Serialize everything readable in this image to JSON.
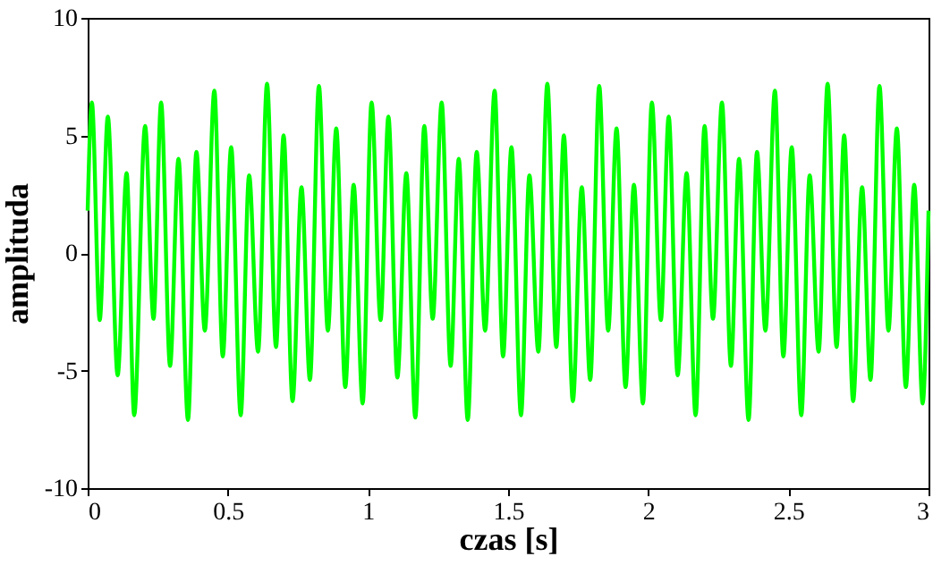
{
  "chart_data": {
    "type": "line",
    "xlabel": "czas [s]",
    "ylabel": "amplituda",
    "color": "#00ff00",
    "xlim": [
      0,
      3
    ],
    "ylim": [
      -10,
      10
    ],
    "xticks": [
      0,
      0.5,
      1,
      1.5,
      2,
      2.5,
      3
    ],
    "yticks": [
      -10,
      -5,
      0,
      5,
      10
    ],
    "grid": false,
    "x": [
      0,
      0.015,
      0.043,
      0.072,
      0.107,
      0.139,
      0.166,
      0.205,
      0.235,
      0.262,
      0.294,
      0.324,
      0.358,
      0.388,
      0.418,
      0.452,
      0.482,
      0.512,
      0.546,
      0.576,
      0.608,
      0.64,
      0.672,
      0.699,
      0.731,
      0.763,
      0.793,
      0.825,
      0.857,
      0.887,
      0.919,
      0.949,
      0.981,
      1.013,
      1.045,
      1.073,
      1.105,
      1.137,
      1.169,
      1.201,
      1.231,
      1.263,
      1.295,
      1.324,
      1.356,
      1.388,
      1.418,
      1.452,
      1.482,
      1.512,
      1.546,
      1.576,
      1.608,
      1.64,
      1.672,
      1.699,
      1.731,
      1.763,
      1.793,
      1.825,
      1.857,
      1.887,
      1.919,
      1.949,
      1.981,
      2.013,
      2.045,
      2.073,
      2.105,
      2.137,
      2.169,
      2.201,
      2.231,
      2.263,
      2.295,
      2.324,
      2.358,
      2.388,
      2.418,
      2.452,
      2.482,
      2.512,
      2.546,
      2.576,
      2.608,
      2.64,
      2.672,
      2.699,
      2.731,
      2.763,
      2.793,
      2.825,
      2.857,
      2.887,
      2.919,
      2.949,
      2.979,
      3
    ],
    "values": [
      1.8,
      6.4,
      -2.85,
      5.8,
      -5.2,
      3.4,
      -6.9,
      5.4,
      -2.8,
      6.4,
      -4.8,
      4.0,
      -7.1,
      4.3,
      -3.3,
      6.9,
      -4.4,
      4.5,
      -6.9,
      3.3,
      -4.2,
      7.2,
      -4.0,
      5.0,
      -6.3,
      2.8,
      -5.4,
      7.1,
      -3.3,
      5.3,
      -5.7,
      2.9,
      -6.4,
      6.4,
      -2.85,
      5.8,
      -5.3,
      3.4,
      -7.0,
      5.4,
      -2.8,
      6.4,
      -4.8,
      4.0,
      -7.1,
      4.3,
      -3.3,
      6.9,
      -4.4,
      4.5,
      -6.9,
      3.3,
      -4.2,
      7.2,
      -4.0,
      5.0,
      -6.3,
      2.8,
      -5.4,
      7.1,
      -3.3,
      5.3,
      -5.7,
      2.9,
      -6.4,
      6.4,
      -2.85,
      5.8,
      -5.2,
      3.4,
      -6.9,
      5.4,
      -2.8,
      6.4,
      -4.8,
      4.0,
      -7.1,
      4.3,
      -3.3,
      6.9,
      -4.4,
      4.5,
      -6.9,
      3.3,
      -4.2,
      7.2,
      -4.0,
      5.0,
      -6.3,
      2.8,
      -5.4,
      7.1,
      -3.3,
      5.3,
      -5.7,
      2.9,
      -6.4,
      1.8
    ]
  }
}
